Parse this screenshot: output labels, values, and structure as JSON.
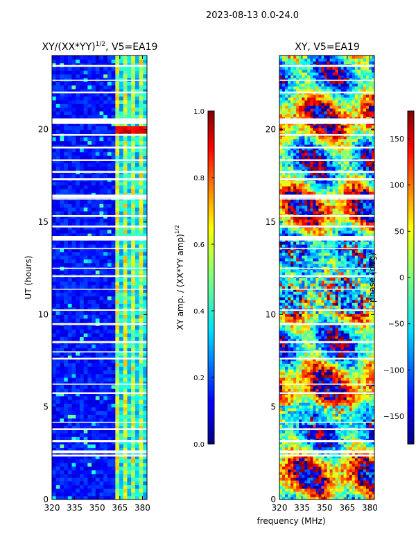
{
  "page": {
    "suptitle": "2023-08-13 0.0-24.0",
    "xlabel_shared": "frequency (MHz)"
  },
  "chart_data": [
    {
      "type": "heatmap",
      "title": "XY/(XX*YY)",
      "title_sup": "1/2",
      "title_suffix": ", V5=EA19",
      "xlabel": "frequency (MHz)",
      "ylabel": "UT (hours)",
      "xlim": [
        320,
        383
      ],
      "ylim": [
        0,
        24
      ],
      "xticks": [
        320,
        335,
        350,
        365,
        380
      ],
      "yticks": [
        0,
        5,
        10,
        15,
        20
      ],
      "colorbar": {
        "label": "XY amp. / (XX*YY amp)",
        "label_sup": "1/2",
        "min": 0.0,
        "max": 1.0,
        "ticks": [
          "0.0",
          "0.2",
          "0.4",
          "0.6",
          "0.8",
          "1.0"
        ],
        "colormap": "jet"
      },
      "description_values": {
        "background_low_freq": 0.05,
        "band_365_380": 0.45,
        "peak_near_20h": 0.85
      }
    },
    {
      "type": "heatmap",
      "title": "XY",
      "title_suffix": ", V5=EA19",
      "xlabel": "frequency (MHz)",
      "ylabel": "",
      "xlim": [
        320,
        383
      ],
      "ylim": [
        0,
        24
      ],
      "xticks": [
        320,
        335,
        350,
        365,
        380
      ],
      "yticks": [
        0,
        5,
        10,
        15,
        20
      ],
      "colorbar": {
        "label": "phase (deg)",
        "min": -180,
        "max": 180,
        "ticks": [
          "150",
          "100",
          "50",
          "0",
          "−50",
          "−100",
          "−150"
        ],
        "tick_values": [
          150,
          100,
          50,
          0,
          -50,
          -100,
          -150
        ],
        "colormap": "jet"
      }
    }
  ],
  "colors": {
    "jet_low": "#00007f",
    "jet_mid": "#7fff7f",
    "jet_high": "#7f0000"
  }
}
